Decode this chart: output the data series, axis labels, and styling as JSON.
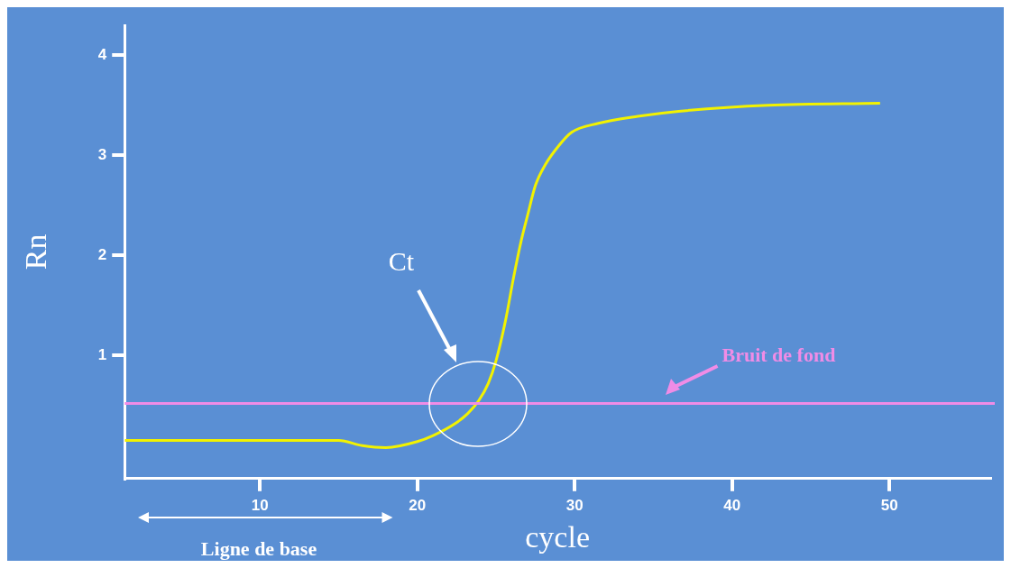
{
  "chart_data": {
    "type": "line",
    "xlabel": "cycle",
    "ylabel": "Rn",
    "xlim": [
      1.4,
      56.4
    ],
    "ylim": [
      -0.23,
      4.3
    ],
    "xticks": [
      10,
      20,
      30,
      40,
      50
    ],
    "yticks": [
      1,
      2,
      3,
      4
    ],
    "grid": false,
    "legend": false,
    "marker": "none",
    "line_style": "solid",
    "series": [
      {
        "color": "#f2f200",
        "x": [
          1.4,
          5,
          10,
          15,
          16.5,
          18,
          20,
          21,
          22.4,
          23.2,
          23.9,
          24.5,
          25,
          25.6,
          26.1,
          26.6,
          27,
          27.5,
          28.1,
          29,
          29.8,
          31.5,
          34,
          36.6,
          42.3,
          49.4
        ],
        "values": [
          0.15,
          0.15,
          0.15,
          0.15,
          0.1,
          0.08,
          0.14,
          0.2,
          0.32,
          0.42,
          0.55,
          0.72,
          0.95,
          1.35,
          1.77,
          2.15,
          2.4,
          2.7,
          2.9,
          3.1,
          3.23,
          3.32,
          3.39,
          3.44,
          3.5,
          3.52
        ]
      }
    ],
    "ref_lines": [
      {
        "axis": "y",
        "value": 0.52,
        "label": "Bruit de fond",
        "color": "#f08ce6"
      }
    ],
    "annotations": [
      "Ct",
      "Ligne de base"
    ]
  }
}
